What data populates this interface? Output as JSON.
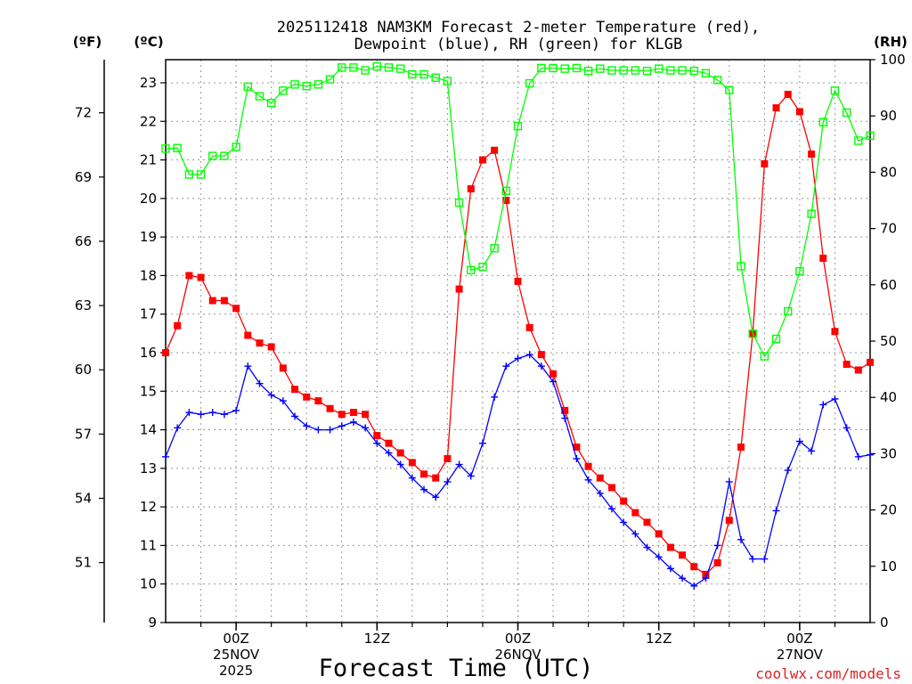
{
  "chart_data": {
    "type": "line",
    "title_lines": [
      "2025112418 NAM3KM Forecast 2-meter Temperature (red),",
      "Dewpoint (blue), RH (green) for KLGB"
    ],
    "xlabel": "Forecast Time (UTC)",
    "credit": "coolwx.com/models",
    "units": {
      "fahrenheit": "(ºF)",
      "celsius": "(ºC)",
      "rh": "(RH)"
    },
    "x_ticks": [
      {
        "hour": 6,
        "lines": [
          "00Z",
          "25NOV",
          "2025"
        ]
      },
      {
        "hour": 18,
        "lines": [
          "12Z"
        ]
      },
      {
        "hour": 30,
        "lines": [
          "00Z",
          "26NOV"
        ]
      },
      {
        "hour": 42,
        "lines": [
          "12Z"
        ]
      },
      {
        "hour": 54,
        "lines": [
          "00Z",
          "27NOV"
        ]
      }
    ],
    "x_range": [
      0,
      60
    ],
    "celsius_ticks": [
      9,
      10,
      11,
      12,
      13,
      14,
      15,
      16,
      17,
      18,
      19,
      20,
      21,
      22,
      23
    ],
    "celsius_range": [
      9,
      23.6
    ],
    "fahrenheit_ticks": [
      51,
      54,
      57,
      60,
      63,
      66,
      69,
      72
    ],
    "rh_ticks": [
      0,
      10,
      20,
      30,
      40,
      50,
      60,
      70,
      80,
      90,
      100
    ],
    "rh_range": [
      0,
      100
    ],
    "grid": true,
    "series": [
      {
        "name": "Temperature",
        "axis": "celsius",
        "color": "#ff0000",
        "marker": "filled-square",
        "hours": [
          0,
          1,
          2,
          3,
          4,
          5,
          6,
          7,
          8,
          9,
          10,
          11,
          12,
          13,
          14,
          15,
          16,
          17,
          18,
          19,
          20,
          21,
          22,
          23,
          24,
          25,
          26,
          27,
          28,
          29,
          30,
          31,
          32,
          33,
          34,
          35,
          36,
          37,
          38,
          39,
          40,
          41,
          42,
          43,
          44,
          45,
          46,
          47,
          48,
          49,
          50,
          51,
          52,
          53,
          54,
          55,
          56,
          57,
          58,
          59,
          60
        ],
        "values": [
          16.0,
          16.7,
          18.0,
          17.95,
          17.35,
          17.35,
          17.15,
          16.45,
          16.25,
          16.15,
          15.6,
          15.05,
          14.85,
          14.75,
          14.55,
          14.4,
          14.45,
          14.4,
          13.85,
          13.65,
          13.4,
          13.15,
          12.85,
          12.75,
          13.25,
          17.65,
          20.25,
          21.0,
          21.25,
          19.95,
          17.85,
          16.65,
          15.95,
          15.45,
          14.5,
          13.55,
          13.05,
          12.75,
          12.5,
          12.15,
          11.85,
          11.6,
          11.3,
          10.95,
          10.75,
          10.45,
          10.25,
          10.55,
          11.65,
          13.55,
          16.5,
          20.9,
          22.35,
          22.7,
          22.25,
          21.15,
          18.45,
          16.55,
          15.7,
          15.55,
          15.75
        ]
      },
      {
        "name": "Dewpoint",
        "axis": "celsius",
        "color": "#0000ff",
        "marker": "plus",
        "hours": [
          0,
          1,
          2,
          3,
          4,
          5,
          6,
          7,
          8,
          9,
          10,
          11,
          12,
          13,
          14,
          15,
          16,
          17,
          18,
          19,
          20,
          21,
          22,
          23,
          24,
          25,
          26,
          27,
          28,
          29,
          30,
          31,
          32,
          33,
          34,
          35,
          36,
          37,
          38,
          39,
          40,
          41,
          42,
          43,
          44,
          45,
          46,
          47,
          48,
          49,
          50,
          51,
          52,
          53,
          54,
          55,
          56,
          57,
          58,
          59,
          60
        ],
        "values": [
          13.3,
          14.05,
          14.45,
          14.4,
          14.45,
          14.4,
          14.5,
          15.65,
          15.2,
          14.9,
          14.75,
          14.35,
          14.1,
          14.0,
          14.0,
          14.1,
          14.2,
          14.05,
          13.65,
          13.4,
          13.1,
          12.75,
          12.45,
          12.25,
          12.65,
          13.1,
          12.8,
          13.65,
          14.85,
          15.65,
          15.85,
          15.95,
          15.65,
          15.25,
          14.3,
          13.25,
          12.7,
          12.35,
          11.95,
          11.6,
          11.3,
          10.95,
          10.7,
          10.4,
          10.15,
          9.95,
          10.15,
          11.0,
          12.65,
          11.15,
          10.65,
          10.65,
          11.9,
          12.95,
          13.7,
          13.45,
          14.65,
          14.8,
          14.05,
          13.3,
          13.35
        ]
      },
      {
        "name": "RH",
        "axis": "rh",
        "color": "#00ff00",
        "marker": "open-square",
        "hours": [
          0,
          1,
          2,
          3,
          4,
          5,
          6,
          7,
          8,
          9,
          10,
          11,
          12,
          13,
          14,
          15,
          16,
          17,
          18,
          19,
          20,
          21,
          22,
          23,
          24,
          25,
          26,
          27,
          28,
          29,
          30,
          31,
          32,
          33,
          34,
          35,
          36,
          37,
          38,
          39,
          40,
          41,
          42,
          43,
          44,
          45,
          46,
          47,
          48,
          49,
          50,
          51,
          52,
          53,
          54,
          55,
          56,
          57,
          58,
          59,
          60
        ],
        "values": [
          84.2,
          84.3,
          79.6,
          79.6,
          82.9,
          82.9,
          84.5,
          95.2,
          93.5,
          92.3,
          94.5,
          95.6,
          95.3,
          95.6,
          96.5,
          98.6,
          98.6,
          98.1,
          98.8,
          98.6,
          98.4,
          97.4,
          97.4,
          96.8,
          96.2,
          74.6,
          62.6,
          63.2,
          66.5,
          76.7,
          88.2,
          95.8,
          98.5,
          98.5,
          98.4,
          98.5,
          98.0,
          98.4,
          98.1,
          98.1,
          98.1,
          98.0,
          98.4,
          98.1,
          98.1,
          98.0,
          97.6,
          96.4,
          94.6,
          63.3,
          51.3,
          47.3,
          50.4,
          55.3,
          62.4,
          72.6,
          88.9,
          94.5,
          90.6,
          85.6,
          86.5
        ]
      }
    ]
  }
}
